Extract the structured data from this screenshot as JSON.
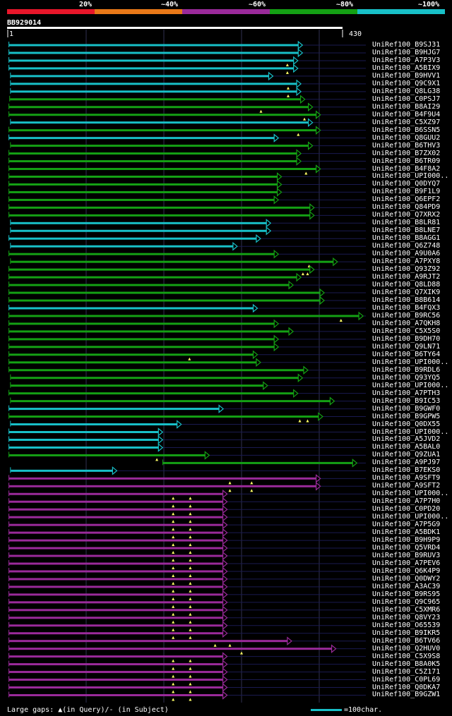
{
  "legend": {
    "identity_labels": [
      "20%",
      "~40%",
      "~60%",
      "~80%",
      "~100%"
    ],
    "identity_colors": [
      "#e8162a",
      "#e87818",
      "#9a2a9a",
      "#14a014",
      "#18c0c8"
    ]
  },
  "query": {
    "id": "BB929014",
    "start_label": "1",
    "end_label": "430",
    "length": 430
  },
  "footer": {
    "gaps_text": "Large gaps: ▲(in Query)/- (in Subject)",
    "scale_text": "=100char.",
    "scale_chars": 100
  },
  "colors": {
    "cyan": "#18c0c8",
    "green": "#14a014",
    "purple": "#9a2a9a",
    "marker": "#ffff66",
    "grid": "#303050",
    "track": "#1a1a50"
  },
  "hits": [
    {
      "id": "UniRef100_B9SJ31",
      "color": "cyan",
      "s": 1,
      "e": 373,
      "m": []
    },
    {
      "id": "UniRef100_B9HJG7",
      "color": "cyan",
      "s": 1,
      "e": 373,
      "m": []
    },
    {
      "id": "UniRef100_A7P3V3",
      "color": "cyan",
      "s": 1,
      "e": 367,
      "m": [
        359
      ]
    },
    {
      "id": "UniRef100_A5BIX9",
      "color": "cyan",
      "s": 1,
      "e": 367,
      "m": [
        359
      ]
    },
    {
      "id": "UniRef100_B9HVV1",
      "color": "cyan",
      "s": 3,
      "e": 335,
      "m": []
    },
    {
      "id": "UniRef100_Q9C9X1",
      "color": "cyan",
      "s": 3,
      "e": 371,
      "m": [
        360
      ]
    },
    {
      "id": "UniRef100_Q8LG38",
      "color": "cyan",
      "s": 3,
      "e": 371,
      "m": [
        360
      ]
    },
    {
      "id": "UniRef100_C0PSJ7",
      "color": "green",
      "s": 2,
      "e": 376,
      "m": []
    },
    {
      "id": "UniRef100_B8AI29",
      "color": "green",
      "s": 1,
      "e": 386,
      "m": [
        325
      ]
    },
    {
      "id": "UniRef100_B4F9U4",
      "color": "green",
      "s": 1,
      "e": 396,
      "m": [
        381
      ]
    },
    {
      "id": "UniRef100_C5XZ97",
      "color": "cyan",
      "s": 3,
      "e": 386,
      "m": []
    },
    {
      "id": "UniRef100_B6SSN5",
      "color": "green",
      "s": 1,
      "e": 396,
      "m": [
        373
      ]
    },
    {
      "id": "UniRef100_Q8GUU2",
      "color": "cyan",
      "s": 1,
      "e": 342,
      "m": []
    },
    {
      "id": "UniRef100_B6THV3",
      "color": "green",
      "s": 3,
      "e": 386,
      "m": []
    },
    {
      "id": "UniRef100_B7ZX02",
      "color": "green",
      "s": 1,
      "e": 371,
      "m": []
    },
    {
      "id": "UniRef100_B6TR09",
      "color": "green",
      "s": 1,
      "e": 371,
      "m": []
    },
    {
      "id": "UniRef100_B4F8A2",
      "color": "green",
      "s": 1,
      "e": 396,
      "m": [
        383
      ]
    },
    {
      "id": "UniRef100_UPI000..",
      "color": "green",
      "s": 1,
      "e": 346,
      "m": []
    },
    {
      "id": "UniRef100_Q0DYQ7",
      "color": "green",
      "s": 1,
      "e": 346,
      "m": []
    },
    {
      "id": "UniRef100_B9F1L9",
      "color": "green",
      "s": 1,
      "e": 346,
      "m": []
    },
    {
      "id": "UniRef100_Q6EPF2",
      "color": "green",
      "s": 1,
      "e": 342,
      "m": []
    },
    {
      "id": "UniRef100_Q84PD9",
      "color": "green",
      "s": 1,
      "e": 388,
      "m": []
    },
    {
      "id": "UniRef100_Q7XRX2",
      "color": "green",
      "s": 1,
      "e": 388,
      "m": []
    },
    {
      "id": "UniRef100_B8LR81",
      "color": "cyan",
      "s": 3,
      "e": 332,
      "m": []
    },
    {
      "id": "UniRef100_B8LNE7",
      "color": "cyan",
      "s": 3,
      "e": 332,
      "m": []
    },
    {
      "id": "UniRef100_B8AGG1",
      "color": "cyan",
      "s": 1,
      "e": 319,
      "m": []
    },
    {
      "id": "UniRef100_Q6Z748",
      "color": "cyan",
      "s": 3,
      "e": 289,
      "m": []
    },
    {
      "id": "UniRef100_A9U0A6",
      "color": "green",
      "s": 1,
      "e": 342,
      "m": []
    },
    {
      "id": "UniRef100_A7PXY8",
      "color": "green",
      "s": 3,
      "e": 418,
      "m": [
        387
      ]
    },
    {
      "id": "UniRef100_Q93Z92",
      "color": "green",
      "s": 1,
      "e": 388,
      "m": [
        379,
        385
      ]
    },
    {
      "id": "UniRef100_A9RJT2",
      "color": "green",
      "s": 1,
      "e": 371,
      "m": []
    },
    {
      "id": "UniRef100_Q8LD88",
      "color": "green",
      "s": 1,
      "e": 361,
      "m": []
    },
    {
      "id": "UniRef100_Q7XIK9",
      "color": "green",
      "s": 1,
      "e": 401,
      "m": []
    },
    {
      "id": "UniRef100_B8B614",
      "color": "green",
      "s": 1,
      "e": 401,
      "m": []
    },
    {
      "id": "UniRef100_B4FQX3",
      "color": "cyan",
      "s": 1,
      "e": 315,
      "m": []
    },
    {
      "id": "UniRef100_B9RC56",
      "color": "green",
      "s": 1,
      "e": 451,
      "m": [
        428
      ]
    },
    {
      "id": "UniRef100_A7QKH8",
      "color": "green",
      "s": 1,
      "e": 342,
      "m": []
    },
    {
      "id": "UniRef100_C5X5S0",
      "color": "green",
      "s": 1,
      "e": 361,
      "m": []
    },
    {
      "id": "UniRef100_B9DH70",
      "color": "green",
      "s": 1,
      "e": 342,
      "m": []
    },
    {
      "id": "UniRef100_Q9LN71",
      "color": "green",
      "s": 1,
      "e": 342,
      "m": []
    },
    {
      "id": "UniRef100_B6TY64",
      "color": "green",
      "s": 1,
      "e": 315,
      "m": [
        233
      ]
    },
    {
      "id": "UniRef100_UPI000..",
      "color": "green",
      "s": 1,
      "e": 319,
      "m": []
    },
    {
      "id": "UniRef100_B9RDL6",
      "color": "green",
      "s": 1,
      "e": 380,
      "m": []
    },
    {
      "id": "UniRef100_Q93YQ5",
      "color": "green",
      "s": 3,
      "e": 373,
      "m": []
    },
    {
      "id": "UniRef100_UPI000..",
      "color": "green",
      "s": 3,
      "e": 328,
      "m": []
    },
    {
      "id": "UniRef100_A7PTH3",
      "color": "green",
      "s": 1,
      "e": 367,
      "m": []
    },
    {
      "id": "UniRef100_B9IC53",
      "color": "green",
      "s": 3,
      "e": 414,
      "m": []
    },
    {
      "id": "UniRef100_B9GWF0",
      "color": "cyan",
      "s": 1,
      "e": 271,
      "m": []
    },
    {
      "id": "UniRef100_B9GPW5",
      "color": "green",
      "s": 1,
      "e": 399,
      "m": [
        375,
        385
      ]
    },
    {
      "id": "UniRef100_Q0DX55",
      "color": "cyan",
      "s": 3,
      "e": 217,
      "m": []
    },
    {
      "id": "UniRef100_UPI000..",
      "color": "cyan",
      "s": 1,
      "e": 193,
      "m": []
    },
    {
      "id": "UniRef100_A5JVD2",
      "color": "cyan",
      "s": 1,
      "e": 193,
      "m": []
    },
    {
      "id": "UniRef100_A5BAL0",
      "color": "cyan",
      "s": 1,
      "e": 193,
      "m": []
    },
    {
      "id": "UniRef100_Q9ZUA1",
      "color": "green",
      "s": 1,
      "e": 253,
      "m": [
        191
      ]
    },
    {
      "id": "UniRef100_A9PJ97",
      "color": "green",
      "s": 199,
      "e": 443,
      "m": []
    },
    {
      "id": "UniRef100_B7EKS0",
      "color": "cyan",
      "s": 3,
      "e": 134,
      "m": []
    },
    {
      "id": "UniRef100_A9SFT9",
      "color": "purple",
      "s": 1,
      "e": 396,
      "m": [
        285,
        313
      ]
    },
    {
      "id": "UniRef100_A9SFT2",
      "color": "purple",
      "s": 1,
      "e": 396,
      "m": [
        285,
        313
      ]
    },
    {
      "id": "UniRef100_UPI000..",
      "color": "purple",
      "s": 1,
      "e": 276,
      "m": [
        212,
        234
      ]
    },
    {
      "id": "UniRef100_A7P7H0",
      "color": "purple",
      "s": 1,
      "e": 276,
      "m": [
        212,
        234
      ]
    },
    {
      "id": "UniRef100_C0PD20",
      "color": "purple",
      "s": 1,
      "e": 276,
      "m": [
        212,
        234
      ]
    },
    {
      "id": "UniRef100_UPI000..",
      "color": "purple",
      "s": 1,
      "e": 276,
      "m": [
        212,
        234
      ]
    },
    {
      "id": "UniRef100_A7P5G9",
      "color": "purple",
      "s": 1,
      "e": 276,
      "m": [
        212,
        234
      ]
    },
    {
      "id": "UniRef100_A5BDK1",
      "color": "purple",
      "s": 1,
      "e": 276,
      "m": [
        212,
        234
      ]
    },
    {
      "id": "UniRef100_B9H9P9",
      "color": "purple",
      "s": 1,
      "e": 276,
      "m": [
        212,
        234
      ]
    },
    {
      "id": "UniRef100_Q5VRD4",
      "color": "purple",
      "s": 1,
      "e": 276,
      "m": [
        212,
        234
      ]
    },
    {
      "id": "UniRef100_B9RUV3",
      "color": "purple",
      "s": 1,
      "e": 276,
      "m": [
        212,
        234
      ]
    },
    {
      "id": "UniRef100_A7PEV6",
      "color": "purple",
      "s": 1,
      "e": 276,
      "m": [
        212,
        234
      ]
    },
    {
      "id": "UniRef100_Q6K4P9",
      "color": "purple",
      "s": 1,
      "e": 276,
      "m": [
        212,
        234
      ]
    },
    {
      "id": "UniRef100_Q0DWY2",
      "color": "purple",
      "s": 1,
      "e": 276,
      "m": [
        212,
        234
      ]
    },
    {
      "id": "UniRef100_A3AC39",
      "color": "purple",
      "s": 1,
      "e": 276,
      "m": [
        212,
        234
      ]
    },
    {
      "id": "UniRef100_B9RS95",
      "color": "purple",
      "s": 1,
      "e": 276,
      "m": [
        212,
        234
      ]
    },
    {
      "id": "UniRef100_Q9C965",
      "color": "purple",
      "s": 1,
      "e": 276,
      "m": [
        212,
        234
      ]
    },
    {
      "id": "UniRef100_C5XMR6",
      "color": "purple",
      "s": 1,
      "e": 276,
      "m": [
        212,
        234
      ]
    },
    {
      "id": "UniRef100_Q8VY23",
      "color": "purple",
      "s": 1,
      "e": 276,
      "m": [
        212,
        234
      ]
    },
    {
      "id": "UniRef100_O65539",
      "color": "purple",
      "s": 1,
      "e": 276,
      "m": [
        212,
        234
      ]
    },
    {
      "id": "UniRef100_B9IKR5",
      "color": "purple",
      "s": 1,
      "e": 276,
      "m": [
        212,
        234
      ]
    },
    {
      "id": "UniRef100_B6TV66",
      "color": "purple",
      "s": 1,
      "e": 359,
      "m": [
        266,
        285
      ]
    },
    {
      "id": "UniRef100_Q2HUV0",
      "color": "purple",
      "s": 1,
      "e": 416,
      "m": [
        300
      ]
    },
    {
      "id": "UniRef100_C5X9S8",
      "color": "purple",
      "s": 1,
      "e": 276,
      "m": [
        212,
        234
      ]
    },
    {
      "id": "UniRef100_B8A0K5",
      "color": "purple",
      "s": 1,
      "e": 276,
      "m": [
        212,
        234
      ]
    },
    {
      "id": "UniRef100_C5Z171",
      "color": "purple",
      "s": 1,
      "e": 276,
      "m": [
        212,
        234
      ]
    },
    {
      "id": "UniRef100_C0PL69",
      "color": "purple",
      "s": 1,
      "e": 276,
      "m": [
        212,
        234
      ]
    },
    {
      "id": "UniRef100_Q0DKA7",
      "color": "purple",
      "s": 1,
      "e": 276,
      "m": [
        212,
        234
      ]
    },
    {
      "id": "UniRef100_B9GZW1",
      "color": "purple",
      "s": 1,
      "e": 276,
      "m": [
        212,
        234
      ]
    }
  ]
}
